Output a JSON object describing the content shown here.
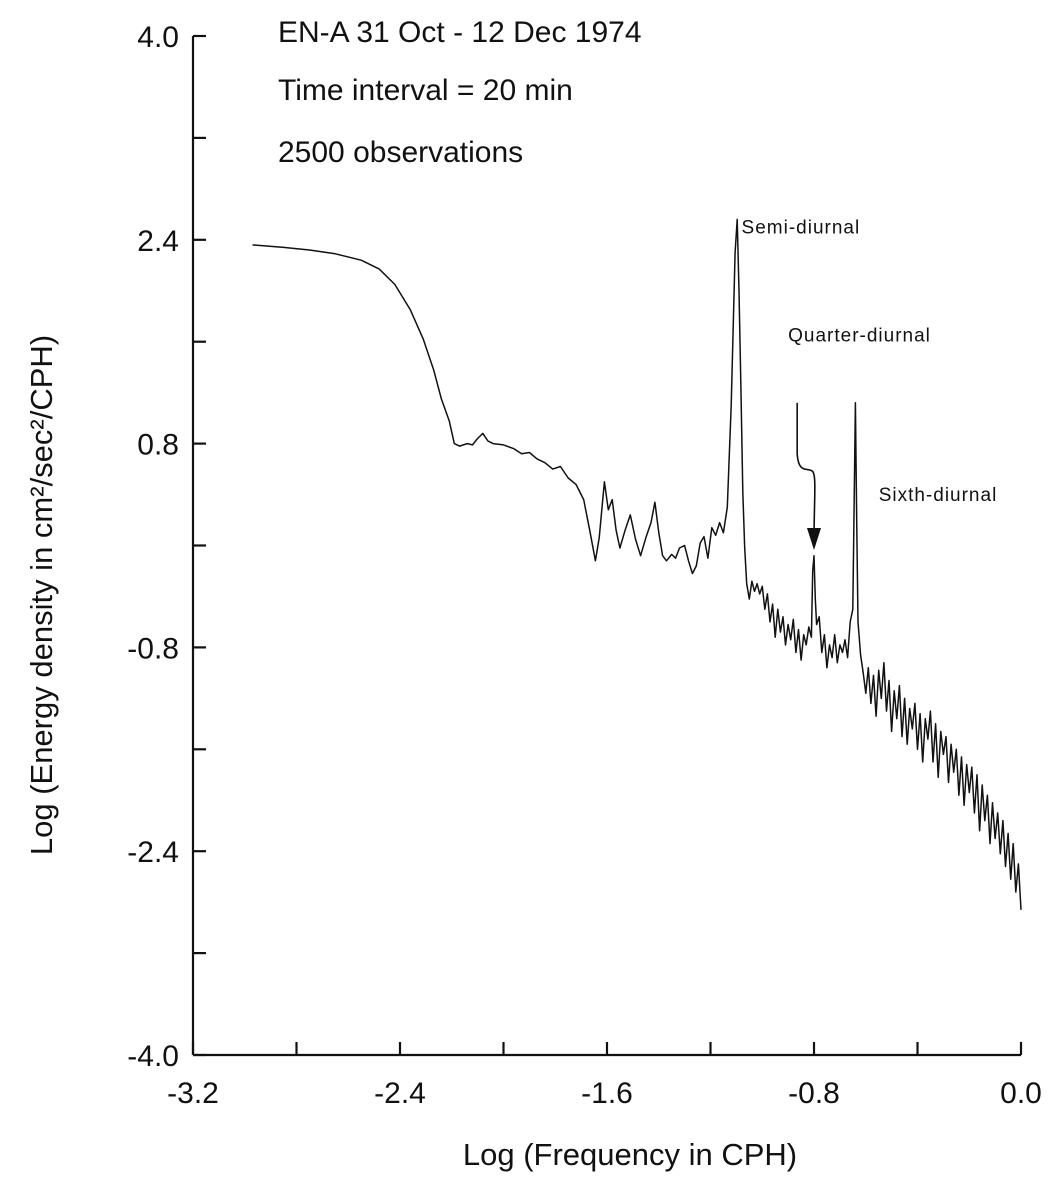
{
  "chart_data": {
    "type": "line",
    "header_lines": [
      "EN-A    31 Oct - 12 Dec  1974",
      "Time interval = 20 min",
      "2500 observations"
    ],
    "xlabel": "Log (Frequency in CPH)",
    "ylabel": "Log (Energy density in cm²/sec²/CPH)",
    "xlim": [
      -3.2,
      0.0
    ],
    "ylim": [
      -4.0,
      4.0
    ],
    "x_ticks": [
      -3.2,
      -2.8,
      -2.4,
      -2.0,
      -1.6,
      -1.2,
      -0.8,
      -0.4,
      0.0
    ],
    "x_tick_labels": [
      {
        "value": -3.2,
        "label": "-3.2"
      },
      {
        "value": -2.4,
        "label": "-2.4"
      },
      {
        "value": -1.6,
        "label": "-1.6"
      },
      {
        "value": -0.8,
        "label": "-0.8"
      },
      {
        "value": 0.0,
        "label": "0.0"
      }
    ],
    "y_ticks": [
      4.0,
      3.2,
      2.4,
      1.6,
      0.8,
      0.0,
      -0.8,
      -1.6,
      -2.4,
      -3.2,
      -4.0
    ],
    "y_tick_labels": [
      {
        "value": 4.0,
        "label": "4.0"
      },
      {
        "value": 2.4,
        "label": "2.4"
      },
      {
        "value": 0.8,
        "label": "0.8"
      },
      {
        "value": -0.8,
        "label": "-0.8"
      },
      {
        "value": -2.4,
        "label": "-2.4"
      },
      {
        "value": -4.0,
        "label": "-4.0"
      }
    ],
    "grid": false,
    "annotations": [
      {
        "text": "Semi-diurnal",
        "x": -1.08,
        "y": 2.45
      },
      {
        "text": "Quarter-diurnal",
        "x": -0.9,
        "y": 1.6
      },
      {
        "text": "Sixth-diurnal",
        "x": -0.55,
        "y": 0.35
      }
    ],
    "series": [
      {
        "points": [
          [
            -2.97,
            2.36
          ],
          [
            -2.85,
            2.34
          ],
          [
            -2.75,
            2.32
          ],
          [
            -2.65,
            2.29
          ],
          [
            -2.55,
            2.24
          ],
          [
            -2.48,
            2.17
          ],
          [
            -2.42,
            2.05
          ],
          [
            -2.36,
            1.85
          ],
          [
            -2.31,
            1.62
          ],
          [
            -2.27,
            1.38
          ],
          [
            -2.24,
            1.15
          ],
          [
            -2.21,
            0.98
          ],
          [
            -2.19,
            0.8
          ],
          [
            -2.17,
            0.78
          ],
          [
            -2.14,
            0.8
          ],
          [
            -2.12,
            0.79
          ],
          [
            -2.1,
            0.84
          ],
          [
            -2.08,
            0.88
          ],
          [
            -2.06,
            0.82
          ],
          [
            -2.04,
            0.8
          ],
          [
            -2.0,
            0.79
          ],
          [
            -1.96,
            0.76
          ],
          [
            -1.93,
            0.72
          ],
          [
            -1.9,
            0.73
          ],
          [
            -1.87,
            0.68
          ],
          [
            -1.84,
            0.65
          ],
          [
            -1.81,
            0.6
          ],
          [
            -1.78,
            0.62
          ],
          [
            -1.75,
            0.53
          ],
          [
            -1.72,
            0.48
          ],
          [
            -1.69,
            0.36
          ],
          [
            -1.665,
            0.1
          ],
          [
            -1.645,
            -0.12
          ],
          [
            -1.63,
            0.06
          ],
          [
            -1.61,
            0.5
          ],
          [
            -1.595,
            0.28
          ],
          [
            -1.58,
            0.36
          ],
          [
            -1.565,
            0.12
          ],
          [
            -1.55,
            -0.02
          ],
          [
            -1.53,
            0.12
          ],
          [
            -1.51,
            0.24
          ],
          [
            -1.49,
            0.05
          ],
          [
            -1.47,
            -0.08
          ],
          [
            -1.45,
            0.06
          ],
          [
            -1.43,
            0.18
          ],
          [
            -1.415,
            0.34
          ],
          [
            -1.4,
            0.1
          ],
          [
            -1.385,
            -0.08
          ],
          [
            -1.37,
            -0.12
          ],
          [
            -1.35,
            -0.07
          ],
          [
            -1.335,
            -0.1
          ],
          [
            -1.32,
            -0.02
          ],
          [
            -1.3,
            0.0
          ],
          [
            -1.285,
            -0.12
          ],
          [
            -1.27,
            -0.22
          ],
          [
            -1.255,
            -0.16
          ],
          [
            -1.24,
            0.02
          ],
          [
            -1.225,
            0.07
          ],
          [
            -1.21,
            -0.1
          ],
          [
            -1.195,
            0.14
          ],
          [
            -1.18,
            0.08
          ],
          [
            -1.165,
            0.18
          ],
          [
            -1.15,
            0.1
          ],
          [
            -1.135,
            0.3
          ],
          [
            -1.12,
            1.1
          ],
          [
            -1.105,
            2.3
          ],
          [
            -1.097,
            2.56
          ],
          [
            -1.09,
            2.0
          ],
          [
            -1.082,
            1.2
          ],
          [
            -1.075,
            0.42
          ],
          [
            -1.068,
            -0.02
          ],
          [
            -1.06,
            -0.3
          ],
          [
            -1.05,
            -0.42
          ],
          [
            -1.04,
            -0.28
          ],
          [
            -1.03,
            -0.36
          ],
          [
            -1.02,
            -0.3
          ],
          [
            -1.01,
            -0.38
          ],
          [
            -1.0,
            -0.32
          ],
          [
            -0.99,
            -0.5
          ],
          [
            -0.98,
            -0.38
          ],
          [
            -0.97,
            -0.6
          ],
          [
            -0.96,
            -0.46
          ],
          [
            -0.95,
            -0.72
          ],
          [
            -0.94,
            -0.5
          ],
          [
            -0.93,
            -0.68
          ],
          [
            -0.92,
            -0.56
          ],
          [
            -0.91,
            -0.78
          ],
          [
            -0.9,
            -0.62
          ],
          [
            -0.89,
            -0.74
          ],
          [
            -0.88,
            -0.58
          ],
          [
            -0.87,
            -0.84
          ],
          [
            -0.86,
            -0.66
          ],
          [
            -0.85,
            -0.9
          ],
          [
            -0.84,
            -0.7
          ],
          [
            -0.83,
            -0.78
          ],
          [
            -0.82,
            -0.64
          ],
          [
            -0.81,
            -0.72
          ],
          [
            -0.805,
            -0.2
          ],
          [
            -0.8,
            -0.08
          ],
          [
            -0.795,
            -0.42
          ],
          [
            -0.79,
            -0.62
          ],
          [
            -0.78,
            -0.56
          ],
          [
            -0.77,
            -0.84
          ],
          [
            -0.76,
            -0.7
          ],
          [
            -0.75,
            -0.96
          ],
          [
            -0.74,
            -0.78
          ],
          [
            -0.73,
            -0.88
          ],
          [
            -0.72,
            -0.7
          ],
          [
            -0.71,
            -0.92
          ],
          [
            -0.7,
            -0.78
          ],
          [
            -0.69,
            -0.84
          ],
          [
            -0.68,
            -0.74
          ],
          [
            -0.67,
            -0.88
          ],
          [
            -0.66,
            -0.6
          ],
          [
            -0.65,
            -0.5
          ],
          [
            -0.645,
            0.3
          ],
          [
            -0.64,
            1.12
          ],
          [
            -0.635,
            0.2
          ],
          [
            -0.63,
            -0.6
          ],
          [
            -0.62,
            -0.86
          ],
          [
            -0.61,
            -1.0
          ],
          [
            -0.6,
            -1.16
          ],
          [
            -0.59,
            -0.96
          ],
          [
            -0.58,
            -1.24
          ],
          [
            -0.57,
            -1.02
          ],
          [
            -0.56,
            -1.34
          ],
          [
            -0.55,
            -0.98
          ],
          [
            -0.54,
            -1.2
          ],
          [
            -0.53,
            -0.92
          ],
          [
            -0.52,
            -1.3
          ],
          [
            -0.51,
            -1.06
          ],
          [
            -0.5,
            -1.46
          ],
          [
            -0.49,
            -1.14
          ],
          [
            -0.48,
            -1.36
          ],
          [
            -0.47,
            -1.1
          ],
          [
            -0.46,
            -1.5
          ],
          [
            -0.45,
            -1.2
          ],
          [
            -0.44,
            -1.56
          ],
          [
            -0.43,
            -1.28
          ],
          [
            -0.42,
            -1.44
          ],
          [
            -0.41,
            -1.24
          ],
          [
            -0.4,
            -1.6
          ],
          [
            -0.39,
            -1.32
          ],
          [
            -0.38,
            -1.7
          ],
          [
            -0.37,
            -1.36
          ],
          [
            -0.36,
            -1.52
          ],
          [
            -0.35,
            -1.3
          ],
          [
            -0.34,
            -1.7
          ],
          [
            -0.33,
            -1.4
          ],
          [
            -0.32,
            -1.82
          ],
          [
            -0.31,
            -1.46
          ],
          [
            -0.3,
            -1.64
          ],
          [
            -0.29,
            -1.5
          ],
          [
            -0.28,
            -1.86
          ],
          [
            -0.27,
            -1.56
          ],
          [
            -0.26,
            -1.78
          ],
          [
            -0.25,
            -1.6
          ],
          [
            -0.24,
            -1.96
          ],
          [
            -0.23,
            -1.66
          ],
          [
            -0.22,
            -2.04
          ],
          [
            -0.21,
            -1.72
          ],
          [
            -0.2,
            -1.94
          ],
          [
            -0.19,
            -1.74
          ],
          [
            -0.18,
            -2.1
          ],
          [
            -0.17,
            -1.8
          ],
          [
            -0.16,
            -2.24
          ],
          [
            -0.15,
            -1.88
          ],
          [
            -0.14,
            -2.16
          ],
          [
            -0.13,
            -1.96
          ],
          [
            -0.12,
            -2.34
          ],
          [
            -0.11,
            -2.02
          ],
          [
            -0.1,
            -2.3
          ],
          [
            -0.09,
            -2.1
          ],
          [
            -0.08,
            -2.42
          ],
          [
            -0.07,
            -2.16
          ],
          [
            -0.06,
            -2.52
          ],
          [
            -0.05,
            -2.26
          ],
          [
            -0.04,
            -2.62
          ],
          [
            -0.03,
            -2.34
          ],
          [
            -0.02,
            -2.72
          ],
          [
            -0.01,
            -2.5
          ],
          [
            0.0,
            -2.86
          ]
        ]
      }
    ]
  }
}
